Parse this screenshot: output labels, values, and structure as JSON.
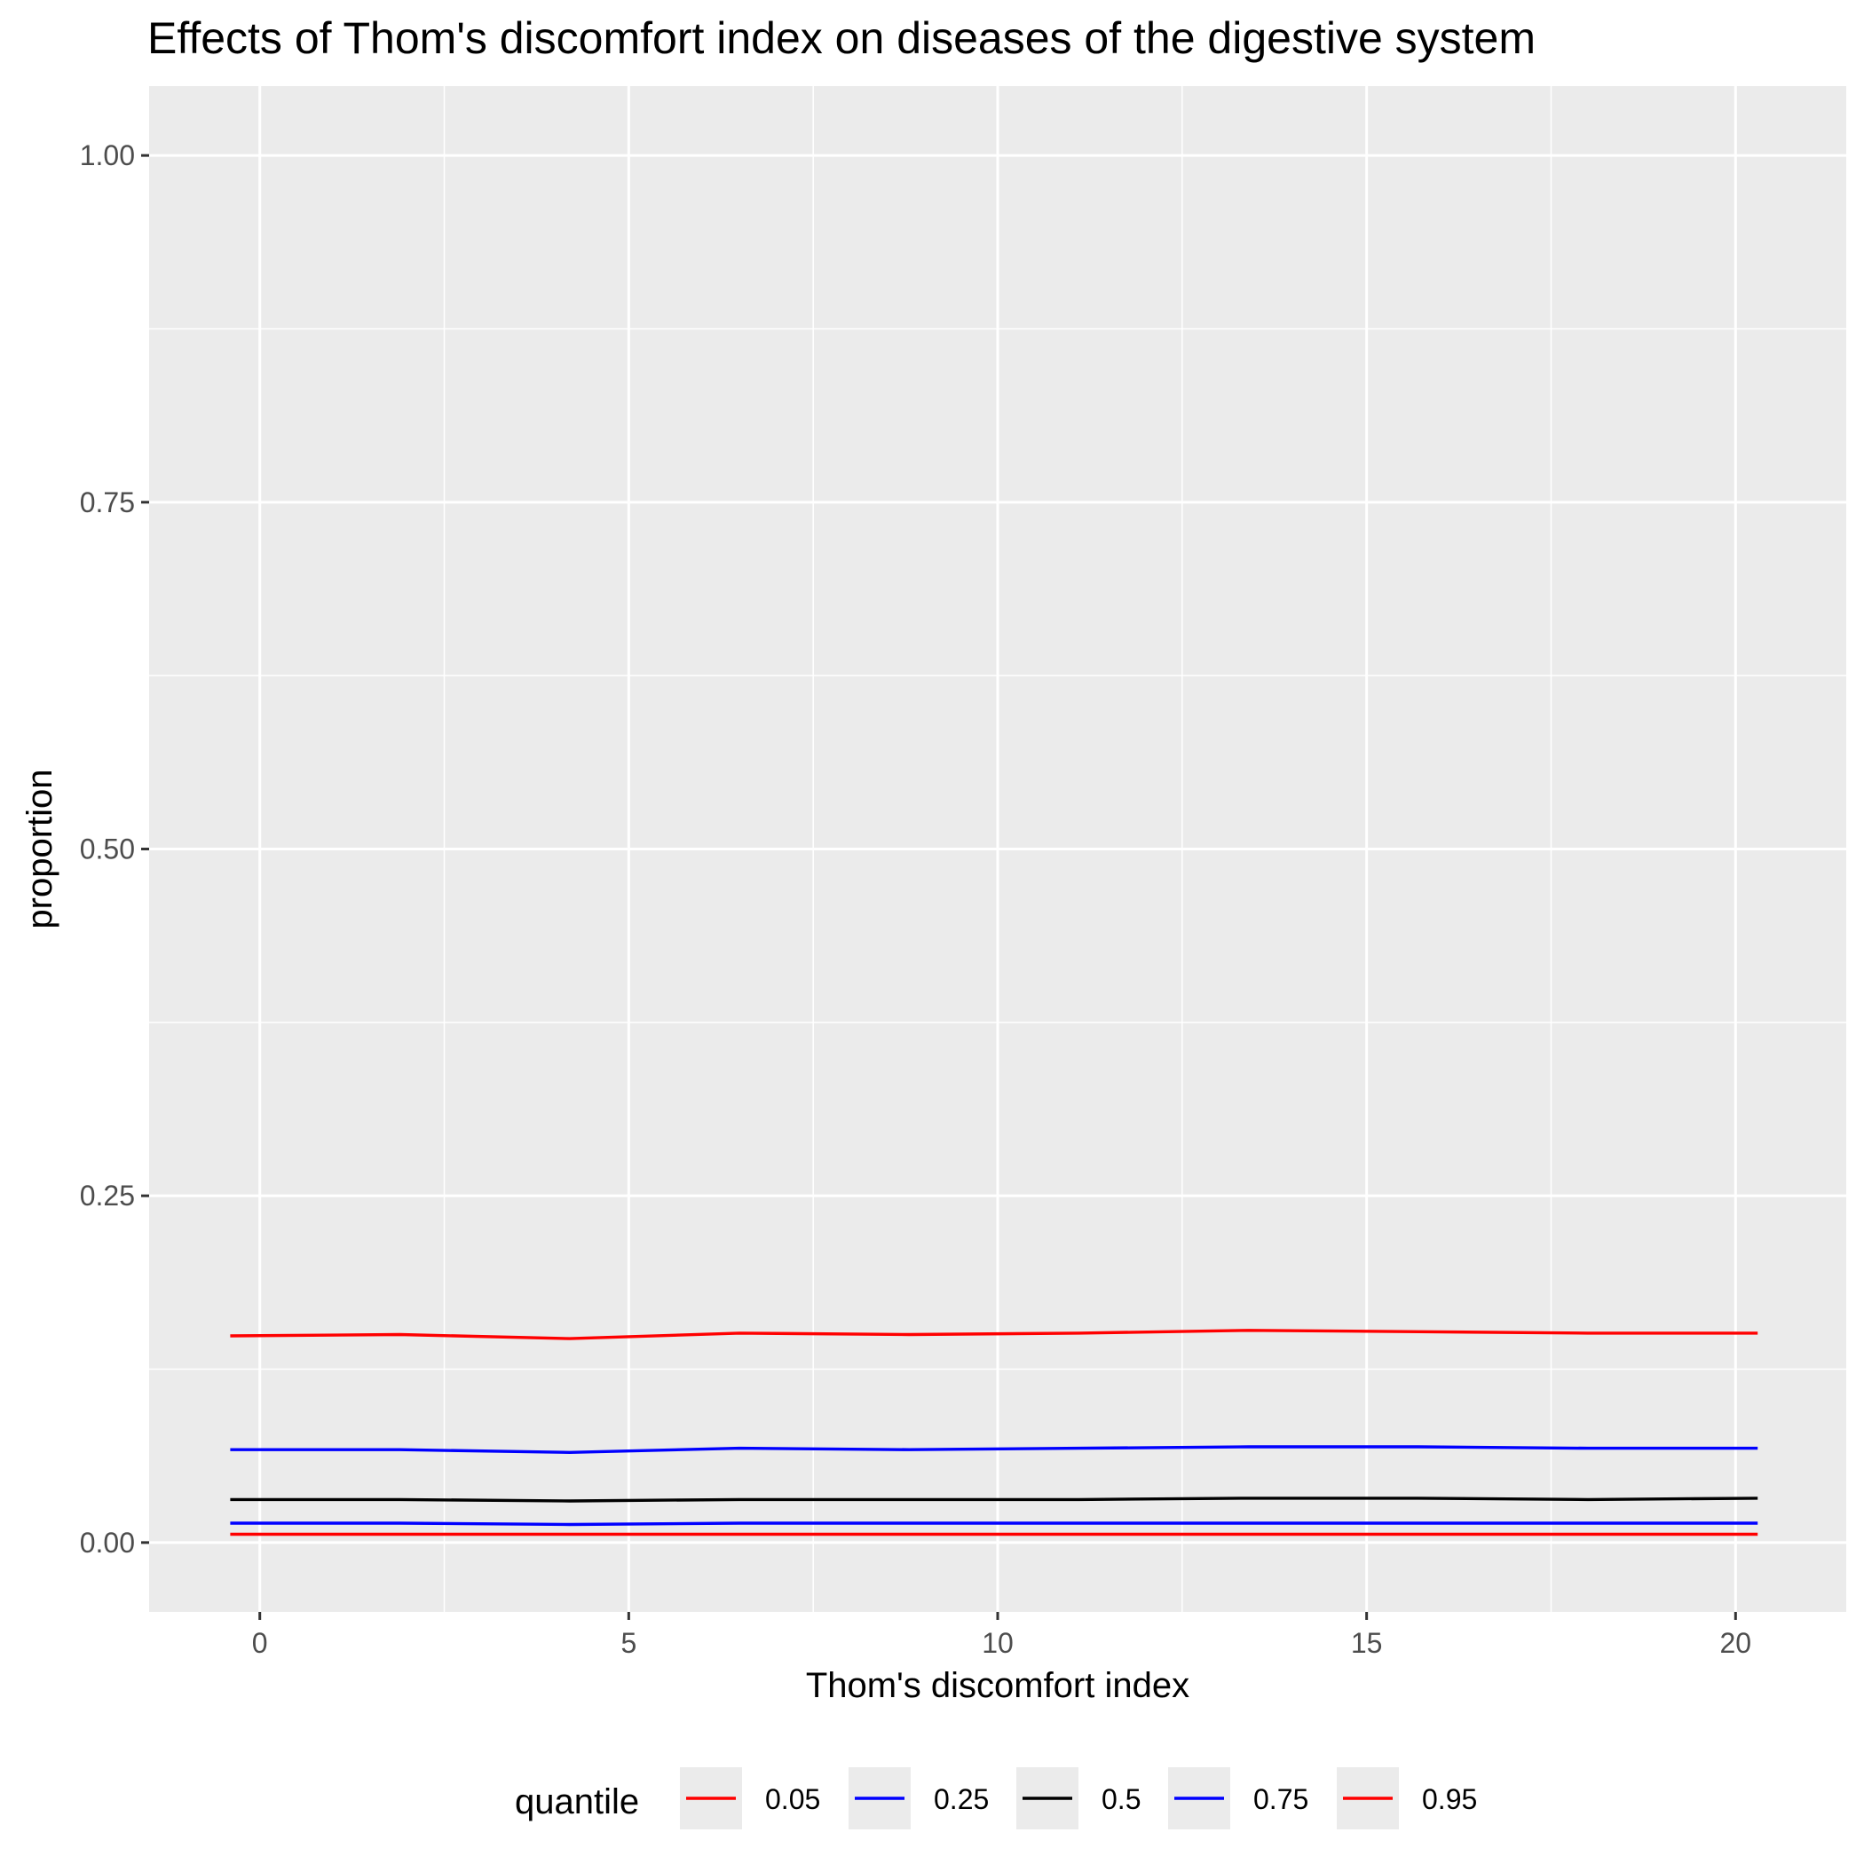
{
  "chart_data": {
    "type": "line",
    "title": "Effects of Thom's discomfort index on diseases of the digestive system",
    "xlabel": "Thom's discomfort index",
    "ylabel": "proportion",
    "xlim": [
      -1.5,
      21.5
    ],
    "ylim": [
      -0.05,
      1.05
    ],
    "x_ticks": [
      0,
      5,
      10,
      15,
      20
    ],
    "x_tick_labels": [
      "0",
      "5",
      "10",
      "15",
      "20"
    ],
    "y_ticks": [
      0,
      0.25,
      0.5,
      0.75,
      1.0
    ],
    "y_tick_labels": [
      "0.00",
      "0.25",
      "0.50",
      "0.75",
      "1.00"
    ],
    "grid": true,
    "legend": {
      "title": "quantile",
      "position": "bottom"
    },
    "x": [
      -0.4,
      1.9,
      4.2,
      6.5,
      8.8,
      11.1,
      13.4,
      15.7,
      18.0,
      20.3
    ],
    "series": [
      {
        "name": "0.05",
        "color": "#ff0000",
        "values": [
          0.006,
          0.006,
          0.006,
          0.006,
          0.006,
          0.006,
          0.006,
          0.006,
          0.006,
          0.006
        ]
      },
      {
        "name": "0.25",
        "color": "#0000ff",
        "values": [
          0.014,
          0.014,
          0.013,
          0.014,
          0.014,
          0.014,
          0.014,
          0.014,
          0.014,
          0.014
        ]
      },
      {
        "name": "0.5",
        "color": "#000000",
        "values": [
          0.031,
          0.031,
          0.03,
          0.031,
          0.031,
          0.031,
          0.032,
          0.032,
          0.031,
          0.032
        ]
      },
      {
        "name": "0.75",
        "color": "#0000ff",
        "values": [
          0.067,
          0.067,
          0.065,
          0.068,
          0.067,
          0.068,
          0.069,
          0.069,
          0.068,
          0.068
        ]
      },
      {
        "name": "0.95",
        "color": "#ff0000",
        "values": [
          0.149,
          0.15,
          0.147,
          0.151,
          0.15,
          0.151,
          0.153,
          0.152,
          0.151,
          0.151
        ]
      }
    ]
  }
}
